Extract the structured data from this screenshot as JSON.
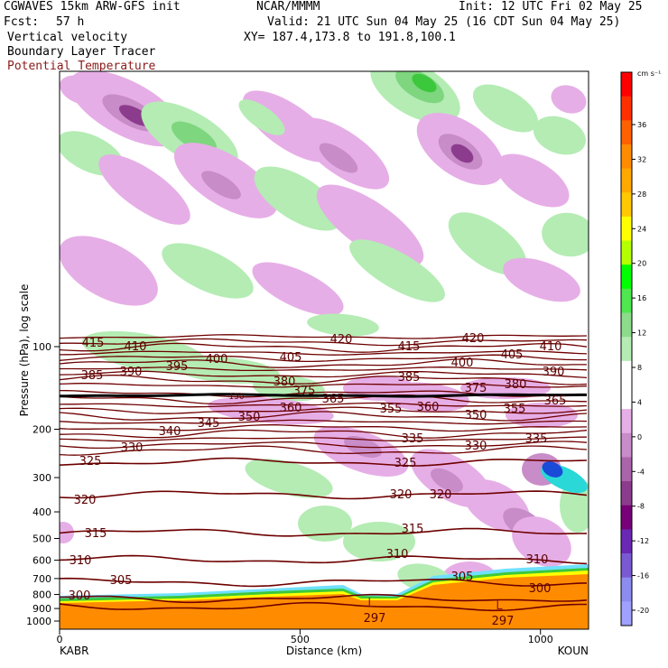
{
  "header": {
    "model": "CGWAVES 15km ARW-GFS init",
    "org": "NCAR/MMMM",
    "init": "Init: 12 UTC Fri 02 May 25",
    "fcst_label": "Fcst:",
    "fcst_value": "57 h",
    "valid": "Valid: 21 UTC Sun 04 May 25 (16 CDT Sun 04 May 25)",
    "field1": "Vertical velocity",
    "field2": "Boundary Layer Tracer",
    "field3": "Potential Temperature",
    "xy": "XY= 187.4,173.8 to 191.8,100.1"
  },
  "chart_data": {
    "type": "heatmap",
    "xlabel": "Distance (km)",
    "ylabel": "Pressure (hPa), log scale",
    "x_ticks": [
      0,
      500,
      1000
    ],
    "x_tick_labels": [
      "0",
      "500",
      "1000"
    ],
    "y_ticks": [
      100,
      200,
      300,
      400,
      500,
      600,
      700,
      800,
      900,
      1000
    ],
    "y_tick_labels": [
      "100",
      "200",
      "300",
      "400",
      "500",
      "600",
      "700",
      "800",
      "900",
      "1000"
    ],
    "end_labels": {
      "left": "KABR",
      "right": "KOUN"
    },
    "colorbar": {
      "unit": "cm s⁻¹",
      "ticks": [
        36,
        32,
        28,
        24,
        20,
        16,
        12,
        8,
        4,
        0,
        -4,
        -8,
        -12,
        -16,
        -20
      ],
      "tick_labels": [
        "36",
        "32",
        "28",
        "24",
        "20",
        "16",
        "12",
        "8",
        "4",
        "0",
        "-4",
        "-8",
        "-12",
        "-16",
        "-20"
      ],
      "colors": [
        "#ff0000",
        "#ff3000",
        "#ff6000",
        "#ff8c00",
        "#ffa800",
        "#ffc800",
        "#ffff00",
        "#b4ff00",
        "#00ff00",
        "#50e650",
        "#8cdc8c",
        "#b4ecb4",
        "#ffffff",
        "#ffffff",
        "#e6aee6",
        "#c88cc8",
        "#aa64aa",
        "#8c3c8c",
        "#780078",
        "#6a28b4",
        "#7a5ad2",
        "#8c8cf0",
        "#a0a0ff"
      ]
    },
    "theta_contours": [
      {
        "label": "297"
      },
      {
        "label": "300"
      },
      {
        "label": "305"
      },
      {
        "label": "310"
      },
      {
        "label": "315"
      },
      {
        "label": "320"
      },
      {
        "label": "325"
      },
      {
        "label": "330"
      },
      {
        "label": "335"
      },
      {
        "label": "340"
      },
      {
        "label": "345"
      },
      {
        "label": "350"
      },
      {
        "label": "355"
      },
      {
        "label": "360"
      },
      {
        "label": "365"
      },
      {
        "label": "375"
      },
      {
        "label": "380"
      },
      {
        "label": "385"
      },
      {
        "label": "390"
      },
      {
        "label": "395"
      },
      {
        "label": "400"
      },
      {
        "label": "405"
      },
      {
        "label": "410"
      },
      {
        "label": "415"
      },
      {
        "label": "420"
      }
    ],
    "low_markers": [
      "L",
      "L"
    ],
    "low_values": [
      "297",
      "297"
    ],
    "tropopause_label": "150",
    "colors": {
      "contour": "#6e0000",
      "updraft_light": "#b4ecb4",
      "updraft_mid": "#7ed67e",
      "updraft_strong": "#3cc83c",
      "downdraft_light": "#e6aee6",
      "downdraft_mid": "#c88cc8",
      "downdraft_strong": "#8c3c8c",
      "boundary_layer": "#ff8c00"
    }
  }
}
